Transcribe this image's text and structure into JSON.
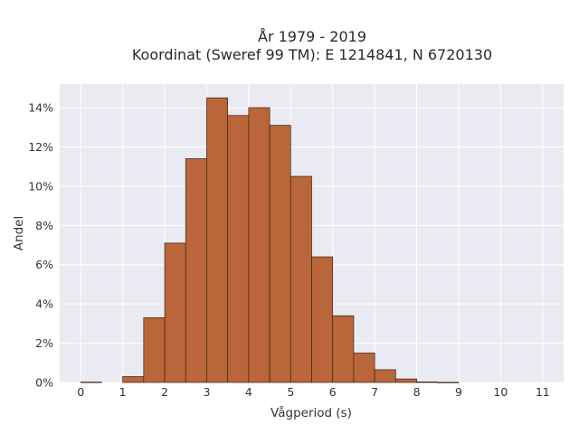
{
  "chart_data": {
    "type": "bar",
    "title_line1": "År 1979 - 2019",
    "title_line2": "Koordinat (Sweref 99 TM): E 1214841, N 6720130",
    "xlabel": "Vågperiod (s)",
    "ylabel": "Andel",
    "xlim": [
      -0.5,
      11.5
    ],
    "ylim": [
      0,
      15.2
    ],
    "x_ticks": [
      0,
      1,
      2,
      3,
      4,
      5,
      6,
      7,
      8,
      9,
      10,
      11
    ],
    "y_ticks": [
      0,
      2,
      4,
      6,
      8,
      10,
      12,
      14
    ],
    "y_tick_suffix": "%",
    "bin_width": 0.5,
    "bins": [
      {
        "start": 0.0,
        "value": 0.02
      },
      {
        "start": 0.5,
        "value": 0.0
      },
      {
        "start": 1.0,
        "value": 0.3
      },
      {
        "start": 1.5,
        "value": 3.3
      },
      {
        "start": 2.0,
        "value": 7.1
      },
      {
        "start": 2.5,
        "value": 11.4
      },
      {
        "start": 3.0,
        "value": 14.5
      },
      {
        "start": 3.5,
        "value": 13.6
      },
      {
        "start": 4.0,
        "value": 14.0
      },
      {
        "start": 4.5,
        "value": 13.1
      },
      {
        "start": 5.0,
        "value": 10.5
      },
      {
        "start": 5.5,
        "value": 6.4
      },
      {
        "start": 6.0,
        "value": 3.4
      },
      {
        "start": 6.5,
        "value": 1.5
      },
      {
        "start": 7.0,
        "value": 0.65
      },
      {
        "start": 7.5,
        "value": 0.18
      },
      {
        "start": 8.0,
        "value": 0.03
      },
      {
        "start": 8.5,
        "value": 0.01
      }
    ],
    "grid": true,
    "bar_color": "#b8663a",
    "bar_edge_color": "#3d2414",
    "plot_background": "#eaeaf2",
    "grid_color": "#ffffff"
  }
}
